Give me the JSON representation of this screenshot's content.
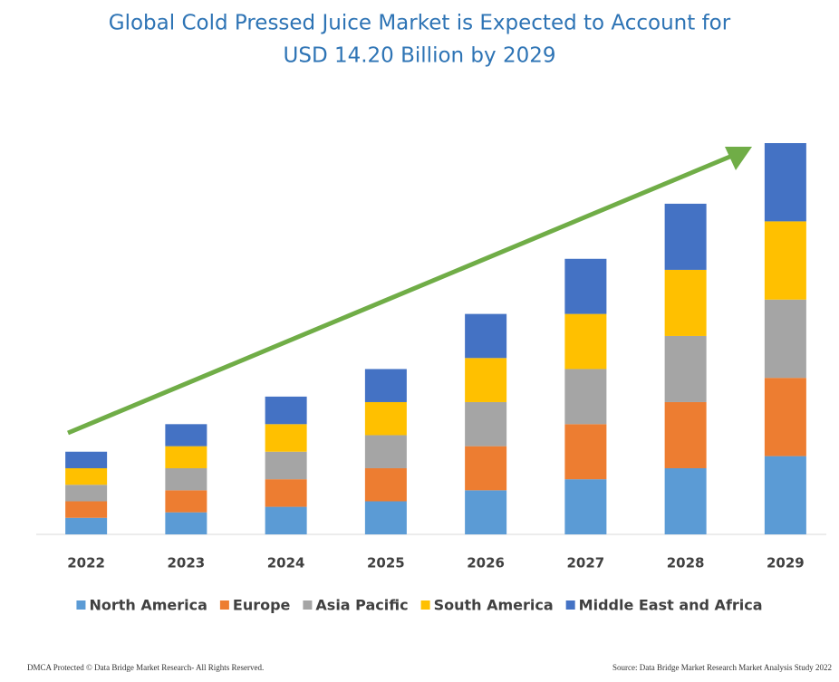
{
  "chart_data": {
    "type": "stacked_bar",
    "title": [
      "Global Cold Pressed Juice Market is Expected to Account for",
      "USD 14.20 Billion by 2029"
    ],
    "categories": [
      "2022",
      "2023",
      "2024",
      "2025",
      "2026",
      "2027",
      "2028",
      "2029"
    ],
    "series": [
      {
        "name": "North America",
        "color": "#5b9bd5",
        "values": [
          0.6,
          0.8,
          1.0,
          1.2,
          1.6,
          2.0,
          2.4,
          2.84
        ]
      },
      {
        "name": "Europe",
        "color": "#ed7d31",
        "values": [
          0.6,
          0.8,
          1.0,
          1.2,
          1.6,
          2.0,
          2.4,
          2.84
        ]
      },
      {
        "name": "Asia Pacific",
        "color": "#a5a5a5",
        "values": [
          0.6,
          0.8,
          1.0,
          1.2,
          1.6,
          2.0,
          2.4,
          2.84
        ]
      },
      {
        "name": "South America",
        "color": "#ffc000",
        "values": [
          0.6,
          0.8,
          1.0,
          1.2,
          1.6,
          2.0,
          2.4,
          2.84
        ]
      },
      {
        "name": "Middle East and Africa",
        "color": "#4472c4",
        "values": [
          0.6,
          0.8,
          1.0,
          1.2,
          1.6,
          2.0,
          2.4,
          2.84
        ]
      }
    ],
    "legend": "bottom",
    "footnotes": [
      "DMCA Protected © Data Bridge Market Research- All Rights Reserved.",
      "Source: Data Bridge Market Research Market Analysis Study 2022"
    ]
  }
}
